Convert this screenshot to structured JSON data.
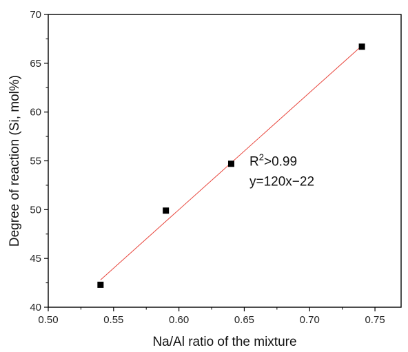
{
  "chart_data": {
    "type": "scatter",
    "xlabel": "Na/Al ratio of the mixture",
    "ylabel": "Degree of reaction (Si, mol%)",
    "xlim": [
      0.5,
      0.77
    ],
    "ylim": [
      40,
      70
    ],
    "xticks": [
      0.5,
      0.55,
      0.6,
      0.65,
      0.7,
      0.75
    ],
    "xtick_labels": [
      "0.50",
      "0.55",
      "0.60",
      "0.65",
      "0.70",
      "0.75"
    ],
    "yticks": [
      40,
      45,
      50,
      55,
      60,
      65,
      70
    ],
    "ytick_labels": [
      "40",
      "45",
      "50",
      "55",
      "60",
      "65",
      "70"
    ],
    "grid": false,
    "series": [
      {
        "x": [
          0.54,
          0.59,
          0.64,
          0.74
        ],
        "y": [
          42.3,
          49.9,
          54.7,
          66.7
        ],
        "marker": "square",
        "color": "#000000"
      }
    ],
    "fit_line": {
      "x": [
        0.54,
        0.74
      ],
      "y": [
        42.8,
        66.8
      ],
      "color": "#e8453c"
    },
    "annotation": {
      "r2_prefix": "R",
      "r2_sup": "2",
      "r2_value": ">0.99",
      "equation": "y=120x−22",
      "anchor_x": 0.654,
      "anchor_y": 54.5
    }
  }
}
